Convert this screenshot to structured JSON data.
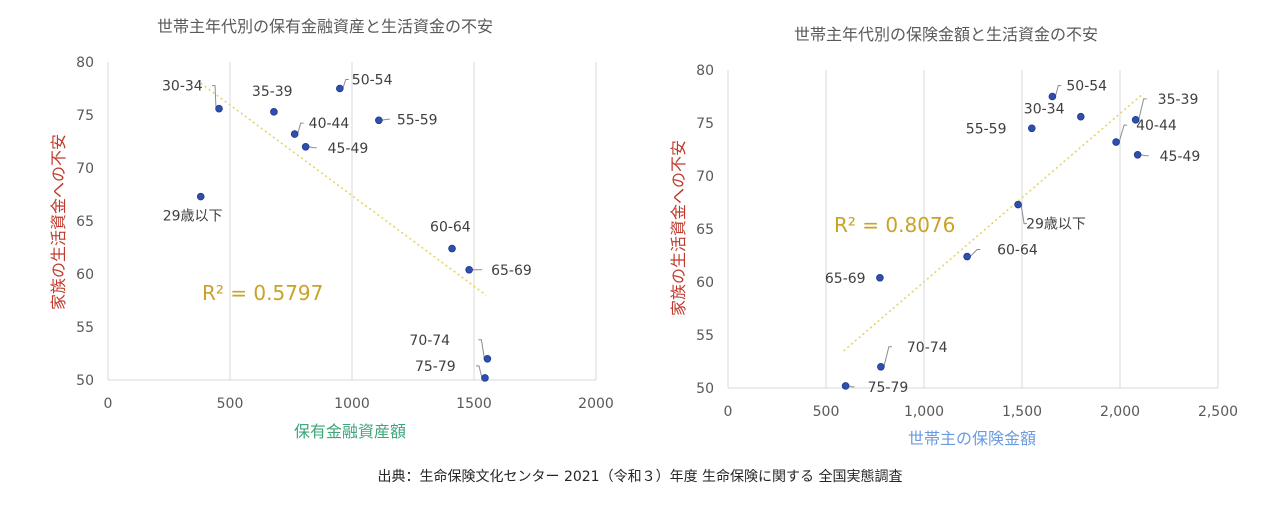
{
  "colors": {
    "marker": "#2E4FAE",
    "trendline": "#E5D36A",
    "r2_text": "#C9A227",
    "ylabel": "#C0392B",
    "xlabel_left": "#3FA57B",
    "xlabel_right": "#6A9BE0",
    "grid": "#D9D9D9",
    "leader": "#8C8C8C"
  },
  "source": "出典：生命保険文化センター 2021（令和３）年度 生命保険に関する 全国実態調査",
  "chart_data": [
    {
      "type": "scatter",
      "title": "世帯主年代別の保有金融資産と生活資金の不安",
      "xlabel": "保有金融資産額",
      "ylabel": "家族の生活資金への不安",
      "xlim": [
        0,
        2000
      ],
      "ylim": [
        50,
        80
      ],
      "xticks": [
        "0",
        "500",
        "1000",
        "1500",
        "2000"
      ],
      "yticks": [
        "50",
        "55",
        "60",
        "65",
        "70",
        "75",
        "80"
      ],
      "grid": "vertical",
      "trendline": {
        "x": [
          380,
          1550
        ],
        "y": [
          78.0,
          58.0
        ]
      },
      "r2": "R² = 0.5797",
      "points": [
        {
          "label": "29歳以下",
          "x": 380,
          "y": 67.3
        },
        {
          "label": "30-34",
          "x": 455,
          "y": 75.6
        },
        {
          "label": "35-39",
          "x": 680,
          "y": 75.3
        },
        {
          "label": "40-44",
          "x": 765,
          "y": 73.2
        },
        {
          "label": "45-49",
          "x": 810,
          "y": 72.0
        },
        {
          "label": "50-54",
          "x": 950,
          "y": 77.5
        },
        {
          "label": "55-59",
          "x": 1110,
          "y": 74.5
        },
        {
          "label": "60-64",
          "x": 1410,
          "y": 62.4
        },
        {
          "label": "65-69",
          "x": 1480,
          "y": 60.4
        },
        {
          "label": "70-74",
          "x": 1555,
          "y": 52.0
        },
        {
          "label": "75-79",
          "x": 1545,
          "y": 50.2
        }
      ]
    },
    {
      "type": "scatter",
      "title": "世帯主年代別の保険金額と生活資金の不安",
      "xlabel": "世帯主の保険金額",
      "ylabel": "家族の生活資金への不安",
      "xlim": [
        0,
        2500
      ],
      "ylim": [
        50,
        80
      ],
      "xticks": [
        "0",
        "500",
        "1,000",
        "1,500",
        "2,000",
        "2,500"
      ],
      "yticks": [
        "50",
        "55",
        "60",
        "65",
        "70",
        "75",
        "80"
      ],
      "grid": "vertical",
      "trendline": {
        "x": [
          590,
          2120
        ],
        "y": [
          53.5,
          77.8
        ]
      },
      "r2": "R² = 0.8076",
      "points": [
        {
          "label": "29歳以下",
          "x": 1480,
          "y": 67.3
        },
        {
          "label": "30-34",
          "x": 1800,
          "y": 75.6
        },
        {
          "label": "35-39",
          "x": 2080,
          "y": 75.3
        },
        {
          "label": "40-44",
          "x": 1980,
          "y": 73.2
        },
        {
          "label": "45-49",
          "x": 2090,
          "y": 72.0
        },
        {
          "label": "50-54",
          "x": 1655,
          "y": 77.5
        },
        {
          "label": "55-59",
          "x": 1550,
          "y": 74.5
        },
        {
          "label": "60-64",
          "x": 1220,
          "y": 62.4
        },
        {
          "label": "65-69",
          "x": 775,
          "y": 60.4
        },
        {
          "label": "70-74",
          "x": 780,
          "y": 52.0
        },
        {
          "label": "75-79",
          "x": 600,
          "y": 50.2
        }
      ]
    }
  ]
}
